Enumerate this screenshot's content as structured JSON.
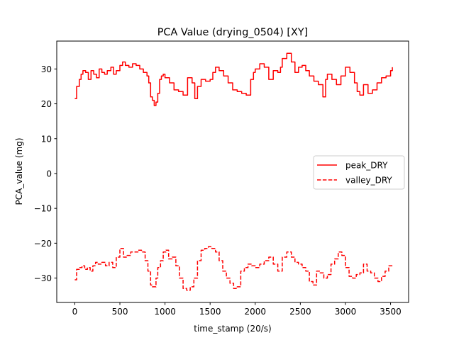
{
  "chart_data": {
    "type": "line",
    "title": "PCA Value (drying_0504) [XY]",
    "xlabel": "time_stamp (20/s)",
    "ylabel": "PCA_value (mg)",
    "xlim": [
      -200,
      3700
    ],
    "ylim": [
      -37,
      38
    ],
    "xticks": [
      0,
      500,
      1000,
      1500,
      2000,
      2500,
      3000,
      3500
    ],
    "xtick_labels": [
      "0",
      "500",
      "1000",
      "1500",
      "2000",
      "2500",
      "3000",
      "3500"
    ],
    "yticks": [
      -30,
      -20,
      -10,
      0,
      10,
      20,
      30
    ],
    "ytick_labels": [
      "−30",
      "−20",
      "−10",
      "0",
      "10",
      "20",
      "30"
    ],
    "grid": false,
    "legend_position": "center-right",
    "series": [
      {
        "name": "peak_DRY",
        "color": "#ff0000",
        "linestyle": "solid",
        "x": [
          0,
          20,
          50,
          70,
          90,
          120,
          150,
          180,
          210,
          240,
          270,
          300,
          330,
          360,
          400,
          430,
          460,
          500,
          530,
          560,
          600,
          640,
          680,
          720,
          760,
          800,
          820,
          840,
          860,
          880,
          900,
          920,
          940,
          960,
          980,
          1000,
          1050,
          1100,
          1150,
          1200,
          1250,
          1300,
          1330,
          1360,
          1400,
          1450,
          1500,
          1530,
          1560,
          1600,
          1650,
          1700,
          1750,
          1800,
          1850,
          1900,
          1950,
          1980,
          2000,
          2050,
          2100,
          2150,
          2200,
          2250,
          2280,
          2300,
          2350,
          2400,
          2440,
          2480,
          2520,
          2560,
          2600,
          2650,
          2700,
          2750,
          2780,
          2800,
          2850,
          2900,
          2950,
          3000,
          3050,
          3100,
          3130,
          3160,
          3200,
          3250,
          3300,
          3350,
          3400,
          3450,
          3500,
          3520
        ],
        "y": [
          21.5,
          25,
          27,
          28.5,
          29.5,
          29,
          27,
          29.5,
          28.5,
          27.5,
          30,
          29,
          28.5,
          29.5,
          30.5,
          28.5,
          29.5,
          31,
          32,
          31,
          30.5,
          31.5,
          31,
          30,
          29,
          28,
          26,
          22,
          21,
          19.5,
          20.5,
          23,
          27,
          28,
          28.5,
          27.5,
          26,
          24,
          23.5,
          22.5,
          27.5,
          26,
          21.5,
          25,
          27,
          26.5,
          27,
          29,
          30.5,
          29.5,
          28,
          26,
          24,
          23.5,
          23,
          22.5,
          27,
          29,
          30,
          31.5,
          30.5,
          27,
          29.5,
          29,
          30.5,
          33,
          34.5,
          32,
          29,
          30.5,
          31,
          29.5,
          28,
          26.5,
          25.5,
          22,
          27,
          28.5,
          27,
          25.5,
          28,
          30.5,
          29,
          26,
          23.5,
          22.5,
          25.5,
          23,
          24,
          26,
          27.5,
          28,
          29.5,
          30.5
        ]
      },
      {
        "name": "valley_DRY",
        "color": "#ff0000",
        "linestyle": "dashed",
        "x": [
          0,
          20,
          50,
          80,
          110,
          140,
          170,
          200,
          230,
          260,
          300,
          340,
          380,
          420,
          460,
          500,
          540,
          580,
          620,
          660,
          700,
          740,
          780,
          810,
          840,
          860,
          880,
          900,
          920,
          950,
          980,
          1010,
          1040,
          1080,
          1120,
          1160,
          1200,
          1240,
          1280,
          1320,
          1360,
          1400,
          1440,
          1480,
          1520,
          1560,
          1600,
          1640,
          1680,
          1720,
          1760,
          1800,
          1840,
          1880,
          1920,
          1960,
          2000,
          2050,
          2100,
          2150,
          2200,
          2250,
          2300,
          2350,
          2400,
          2440,
          2480,
          2520,
          2560,
          2600,
          2640,
          2680,
          2720,
          2760,
          2800,
          2840,
          2880,
          2920,
          2960,
          3000,
          3040,
          3080,
          3120,
          3160,
          3200,
          3240,
          3280,
          3320,
          3360,
          3400,
          3440,
          3480,
          3520
        ],
        "y": [
          -30.5,
          -27.5,
          -27,
          -26.5,
          -27.5,
          -27,
          -28,
          -26.5,
          -25.5,
          -26,
          -25.5,
          -26.5,
          -25.5,
          -27,
          -24,
          -21.5,
          -24,
          -23.5,
          -22.5,
          -22.5,
          -22,
          -22.5,
          -25,
          -28,
          -32,
          -32.5,
          -32.5,
          -30,
          -27,
          -25,
          -22.5,
          -22,
          -24.5,
          -24,
          -26.5,
          -30,
          -33,
          -33.5,
          -32.5,
          -30,
          -25,
          -22,
          -21.5,
          -21,
          -21.5,
          -22.5,
          -25,
          -28,
          -30,
          -31.5,
          -33,
          -32.5,
          -28,
          -27,
          -26,
          -26.5,
          -27,
          -26,
          -25,
          -24,
          -26,
          -28,
          -24,
          -22.5,
          -24,
          -25.5,
          -26,
          -27,
          -28,
          -31,
          -32,
          -28,
          -28.5,
          -30,
          -29,
          -26,
          -24.5,
          -22.5,
          -23.5,
          -27,
          -29.5,
          -30,
          -29,
          -28.5,
          -26,
          -28,
          -28.5,
          -30,
          -31,
          -29.5,
          -28,
          -26.5,
          -26.5
        ]
      }
    ]
  }
}
